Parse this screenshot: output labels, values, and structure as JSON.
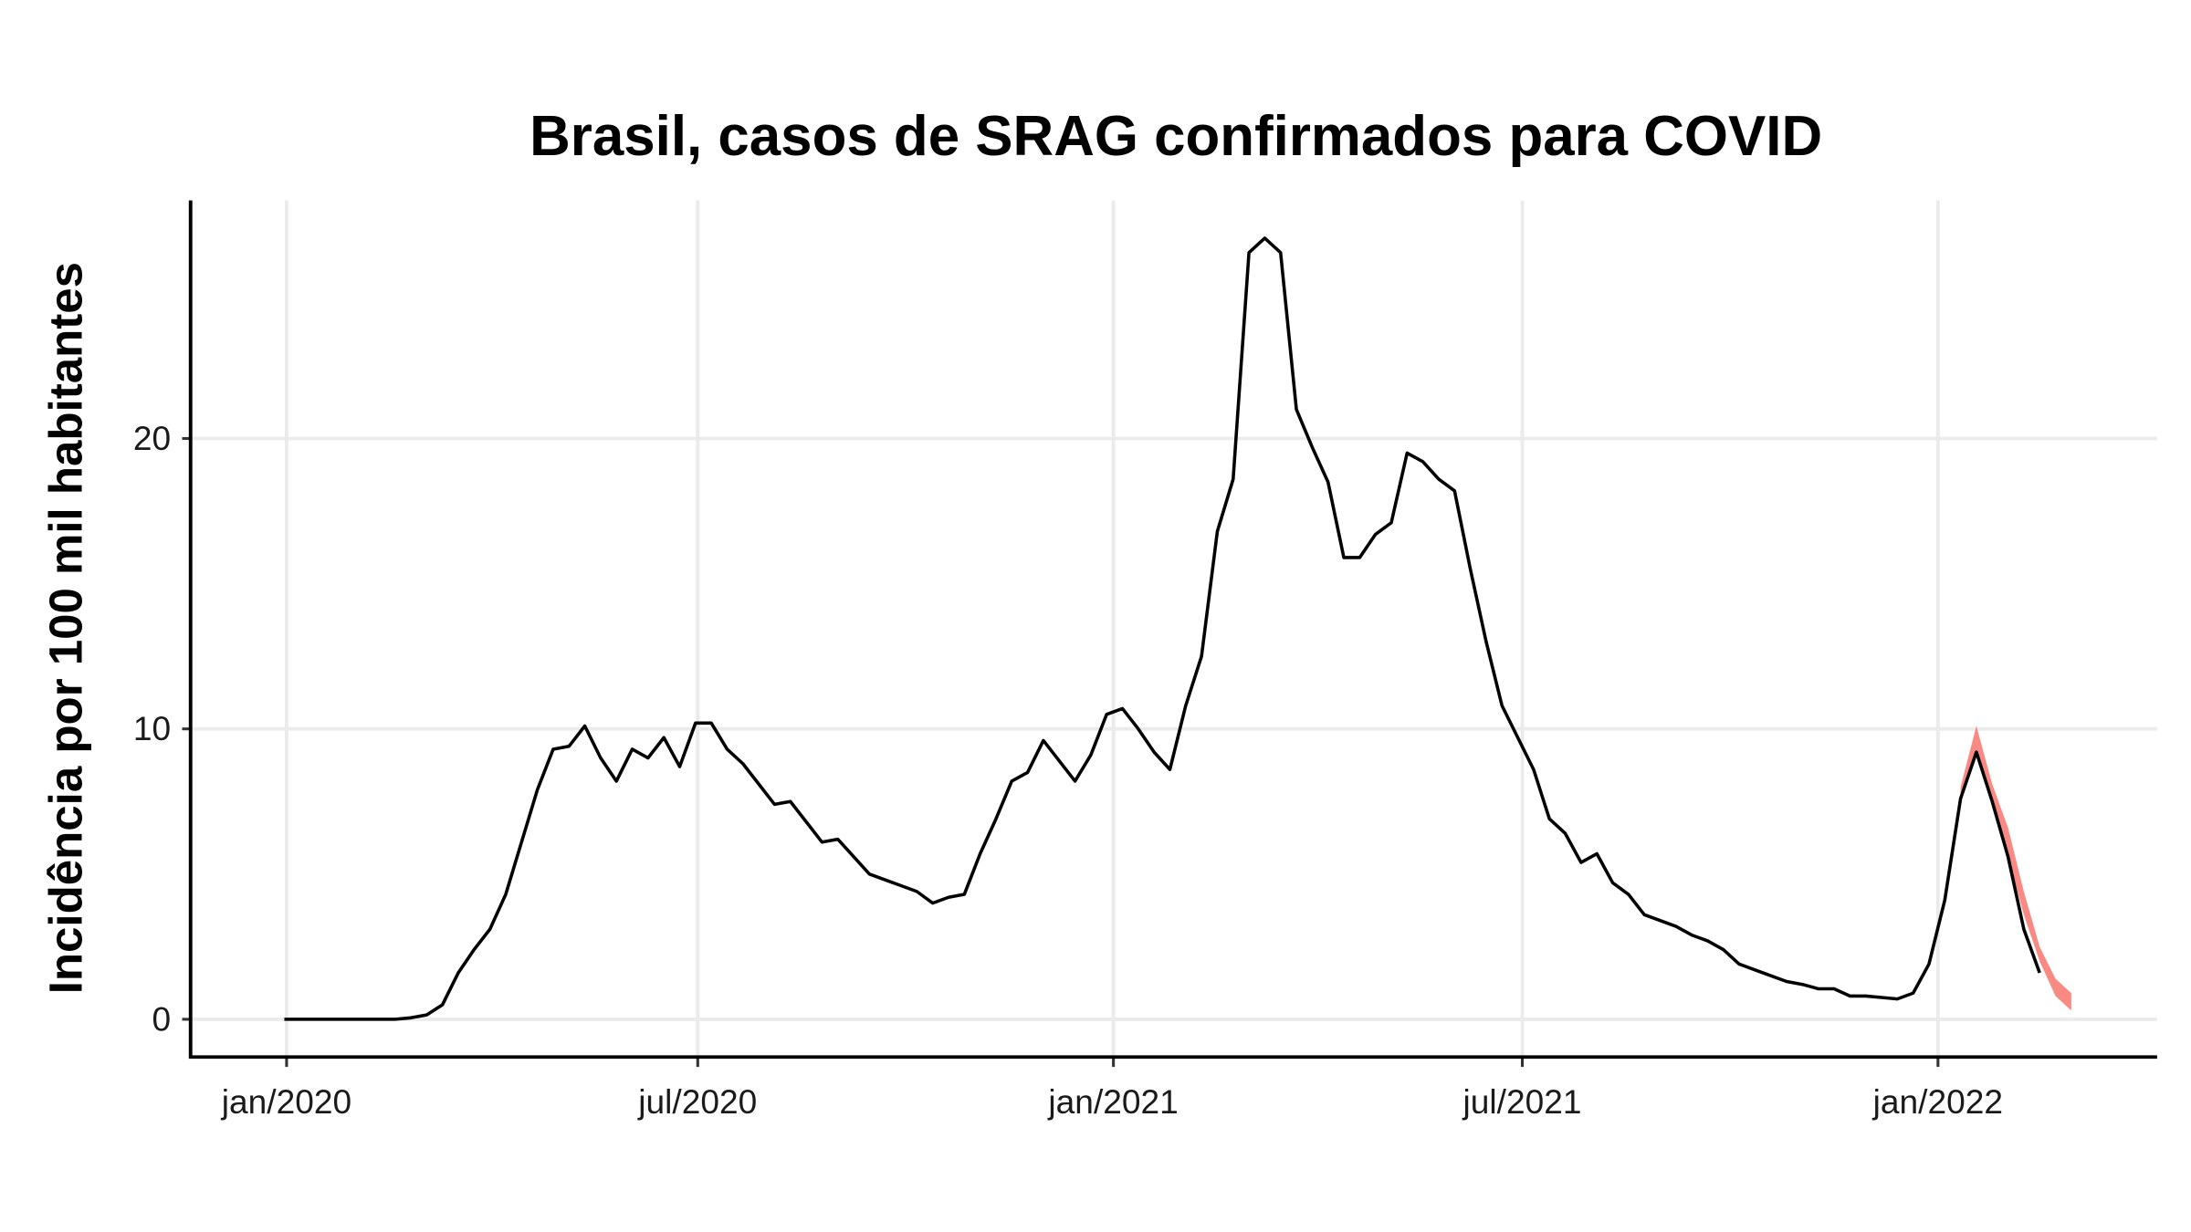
{
  "chart_data": {
    "type": "line",
    "title": "Brasil, casos de SRAG confirmados para COVID",
    "y_label": "Incidência por 100 mil habitantes",
    "x": [
      -1,
      6,
      13,
      20,
      27,
      34,
      41,
      48,
      55,
      62,
      69,
      76,
      83,
      90,
      97,
      104,
      111,
      118,
      125,
      132,
      139,
      146,
      153,
      160,
      167,
      174,
      181,
      188,
      195,
      202,
      209,
      216,
      223,
      230,
      237,
      244,
      251,
      258,
      265,
      272,
      279,
      286,
      293,
      300,
      307,
      314,
      321,
      328,
      335,
      342,
      349,
      356,
      363,
      370,
      377,
      384,
      391,
      398,
      405,
      412,
      419,
      426,
      433,
      440,
      447,
      454,
      461,
      468,
      475,
      482,
      489,
      496,
      503,
      510,
      517,
      524,
      531,
      538,
      545,
      552,
      559,
      566,
      573,
      580,
      587,
      594,
      601,
      608,
      615,
      622,
      629,
      636,
      643,
      650,
      657,
      664,
      671,
      678,
      685,
      692,
      699,
      706,
      713,
      720,
      727,
      734,
      741,
      748,
      755,
      762,
      769,
      776
    ],
    "series": [
      {
        "color": "#000000",
        "values": [
          0,
          0,
          0,
          0,
          0,
          0,
          0,
          0,
          0.05,
          0.15,
          0.5,
          1.6,
          2.4,
          3.1,
          4.3,
          6.1,
          7.9,
          9.3,
          9.4,
          10.1,
          9.0,
          8.2,
          9.3,
          9.0,
          9.7,
          8.7,
          10.2,
          10.2,
          9.3,
          8.8,
          8.1,
          7.4,
          7.5,
          6.8,
          6.1,
          6.2,
          5.6,
          5.0,
          4.8,
          4.6,
          4.4,
          4.0,
          4.2,
          4.3,
          5.7,
          6.9,
          8.2,
          8.5,
          9.6,
          8.9,
          8.2,
          9.1,
          10.5,
          10.7,
          10.0,
          9.2,
          8.6,
          10.8,
          12.5,
          16.8,
          18.6,
          26.4,
          26.9,
          26.4,
          21.0,
          19.7,
          18.5,
          15.9,
          15.9,
          16.7,
          17.1,
          19.5,
          19.2,
          18.6,
          18.2,
          15.5,
          13.0,
          10.8,
          9.7,
          8.6,
          6.9,
          6.4,
          5.4,
          5.7,
          4.7,
          4.3,
          3.6,
          3.4,
          3.2,
          2.9,
          2.7,
          2.4,
          1.9,
          1.7,
          1.5,
          1.3,
          1.2,
          1.05,
          1.05,
          0.8,
          0.8,
          0.75,
          0.7,
          0.9,
          1.9,
          4.1,
          7.6,
          9.2,
          7.5,
          5.6,
          3.1,
          1.6
        ]
      }
    ],
    "band": {
      "color": "#f8766d",
      "x": [
        741,
        748,
        755,
        762,
        769,
        776,
        783,
        790
      ],
      "lower": [
        7.5,
        9.2,
        7.4,
        5.6,
        3.6,
        2.0,
        0.8,
        0.3
      ],
      "upper": [
        8.0,
        10.1,
        8.1,
        6.6,
        4.4,
        2.5,
        1.4,
        0.9
      ]
    },
    "xlim": [
      -42.5,
      828
    ],
    "ylim": [
      -1.3,
      28.2
    ],
    "xticks": [
      {
        "value": 0,
        "label": "jan/2020"
      },
      {
        "value": 182,
        "label": "jul/2020"
      },
      {
        "value": 366,
        "label": "jan/2021"
      },
      {
        "value": 547,
        "label": "jul/2021"
      },
      {
        "value": 731,
        "label": "jan/2022"
      }
    ],
    "yticks": [
      0,
      10,
      20
    ],
    "grid": true
  }
}
